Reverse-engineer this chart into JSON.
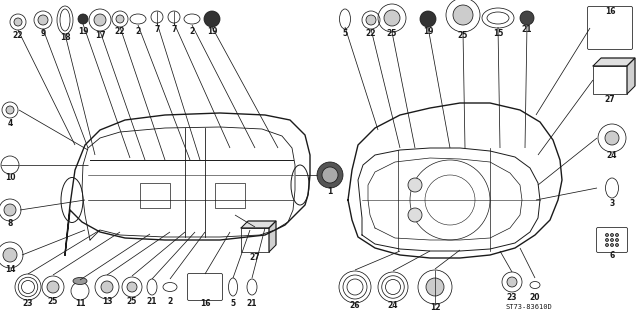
{
  "bg_color": "#ffffff",
  "fig_width": 6.37,
  "fig_height": 3.2,
  "part_number": "ST73-83610D",
  "line_color": "#1a1a1a",
  "label_fontsize": 5.5,
  "line_lw": 0.55
}
